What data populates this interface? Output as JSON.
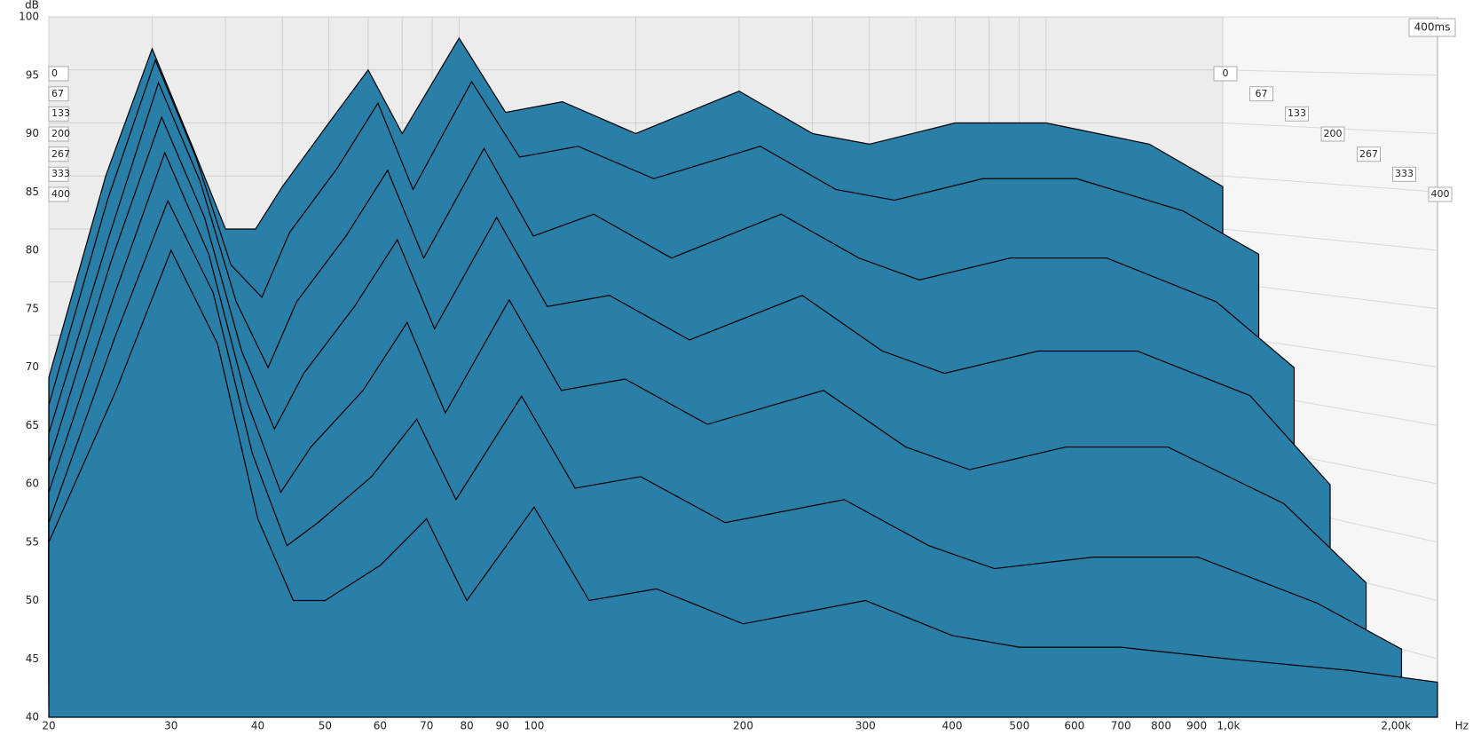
{
  "chart_data": {
    "type": "waterfall",
    "y_label": "dB",
    "x_label": "Hz",
    "z_axis_label": "400ms",
    "color": "#2a7fa8",
    "x": [
      20,
      25,
      30,
      35,
      40,
      45,
      50,
      60,
      70,
      80,
      100,
      120,
      150,
      200,
      300,
      400,
      500,
      700,
      1000,
      1500,
      2000
    ],
    "series": [
      {
        "time": 0,
        "values": [
          66,
          85,
          97,
          88,
          80,
          80,
          84,
          90,
          95,
          89,
          98,
          91,
          92,
          89,
          93,
          89,
          88,
          90,
          90,
          88,
          84
        ]
      },
      {
        "time": 67,
        "values": [
          64,
          83,
          96,
          87,
          77,
          74,
          80,
          86,
          92,
          84,
          94,
          87,
          88,
          85,
          88,
          84,
          83,
          85,
          85,
          82,
          78
        ]
      },
      {
        "time": 133,
        "values": [
          62,
          80,
          94,
          85,
          74,
          68,
          74,
          80,
          86,
          78,
          88,
          80,
          82,
          78,
          82,
          78,
          76,
          78,
          78,
          74,
          68
        ]
      },
      {
        "time": 200,
        "values": [
          60,
          78,
          91,
          82,
          70,
          63,
          68,
          74,
          80,
          72,
          82,
          74,
          75,
          71,
          75,
          70,
          68,
          70,
          70,
          66,
          58
        ]
      },
      {
        "time": 267,
        "values": [
          58,
          75,
          88,
          79,
          66,
          58,
          62,
          67,
          73,
          65,
          75,
          67,
          68,
          64,
          67,
          62,
          60,
          62,
          62,
          57,
          50
        ]
      },
      {
        "time": 333,
        "values": [
          56,
          72,
          84,
          76,
          62,
          54,
          56,
          60,
          65,
          58,
          67,
          59,
          60,
          56,
          58,
          54,
          52,
          53,
          53,
          49,
          45
        ]
      },
      {
        "time": 400,
        "values": [
          55,
          68,
          80,
          72,
          57,
          50,
          50,
          53,
          57,
          50,
          58,
          50,
          51,
          48,
          50,
          47,
          46,
          46,
          45,
          44,
          43
        ]
      }
    ],
    "xlim": [
      20,
      2000
    ],
    "log_x": true,
    "xticks": [
      20,
      30,
      40,
      50,
      60,
      70,
      80,
      90,
      100,
      200,
      300,
      400,
      500,
      600,
      700,
      800,
      900,
      {
        "value": 1000,
        "label": "1,0k"
      },
      {
        "value": 2000,
        "label": "2,00k"
      }
    ],
    "ylim": [
      40,
      100
    ],
    "yticks": [
      40,
      45,
      50,
      55,
      60,
      65,
      70,
      75,
      80,
      85,
      90,
      95,
      100
    ],
    "zlim": [
      0,
      400
    ],
    "zticks": [
      0,
      67,
      133,
      200,
      267,
      333,
      400
    ],
    "grid": true
  }
}
